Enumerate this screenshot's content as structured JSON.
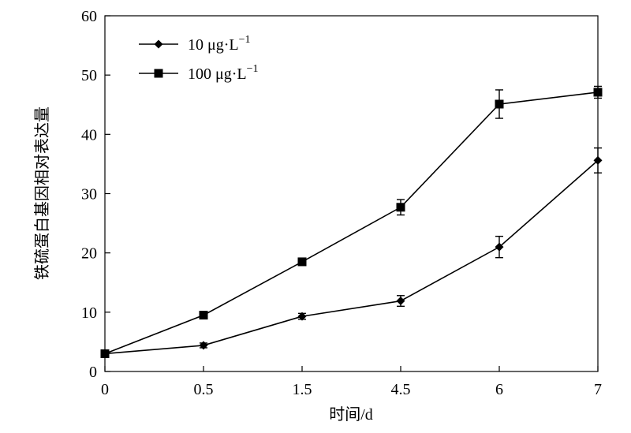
{
  "chart_data": {
    "type": "line",
    "categories": [
      "0",
      "0.5",
      "1.5",
      "4.5",
      "6",
      "7"
    ],
    "xlabel": "时间/d",
    "ylabel": "铁硫蛋白基因相对表达量",
    "ylim": [
      0,
      60
    ],
    "yticks": [
      "0",
      "10",
      "20",
      "30",
      "40",
      "50",
      "60"
    ],
    "grid": false,
    "legend_position": "top-left",
    "series": [
      {
        "name": "10 μg·L",
        "name_sup": "−1",
        "marker": "diamond",
        "color": "#000000",
        "values": [
          3.0,
          4.4,
          9.3,
          11.9,
          21.0,
          35.6
        ],
        "errors": [
          0.2,
          0.4,
          0.5,
          0.9,
          1.8,
          2.1
        ]
      },
      {
        "name": "100 μg·L",
        "name_sup": "−1",
        "marker": "square",
        "color": "#000000",
        "values": [
          3.0,
          9.5,
          18.5,
          27.7,
          45.1,
          47.1
        ],
        "errors": [
          0.2,
          0.4,
          0.5,
          1.3,
          2.4,
          1.0
        ]
      }
    ]
  }
}
